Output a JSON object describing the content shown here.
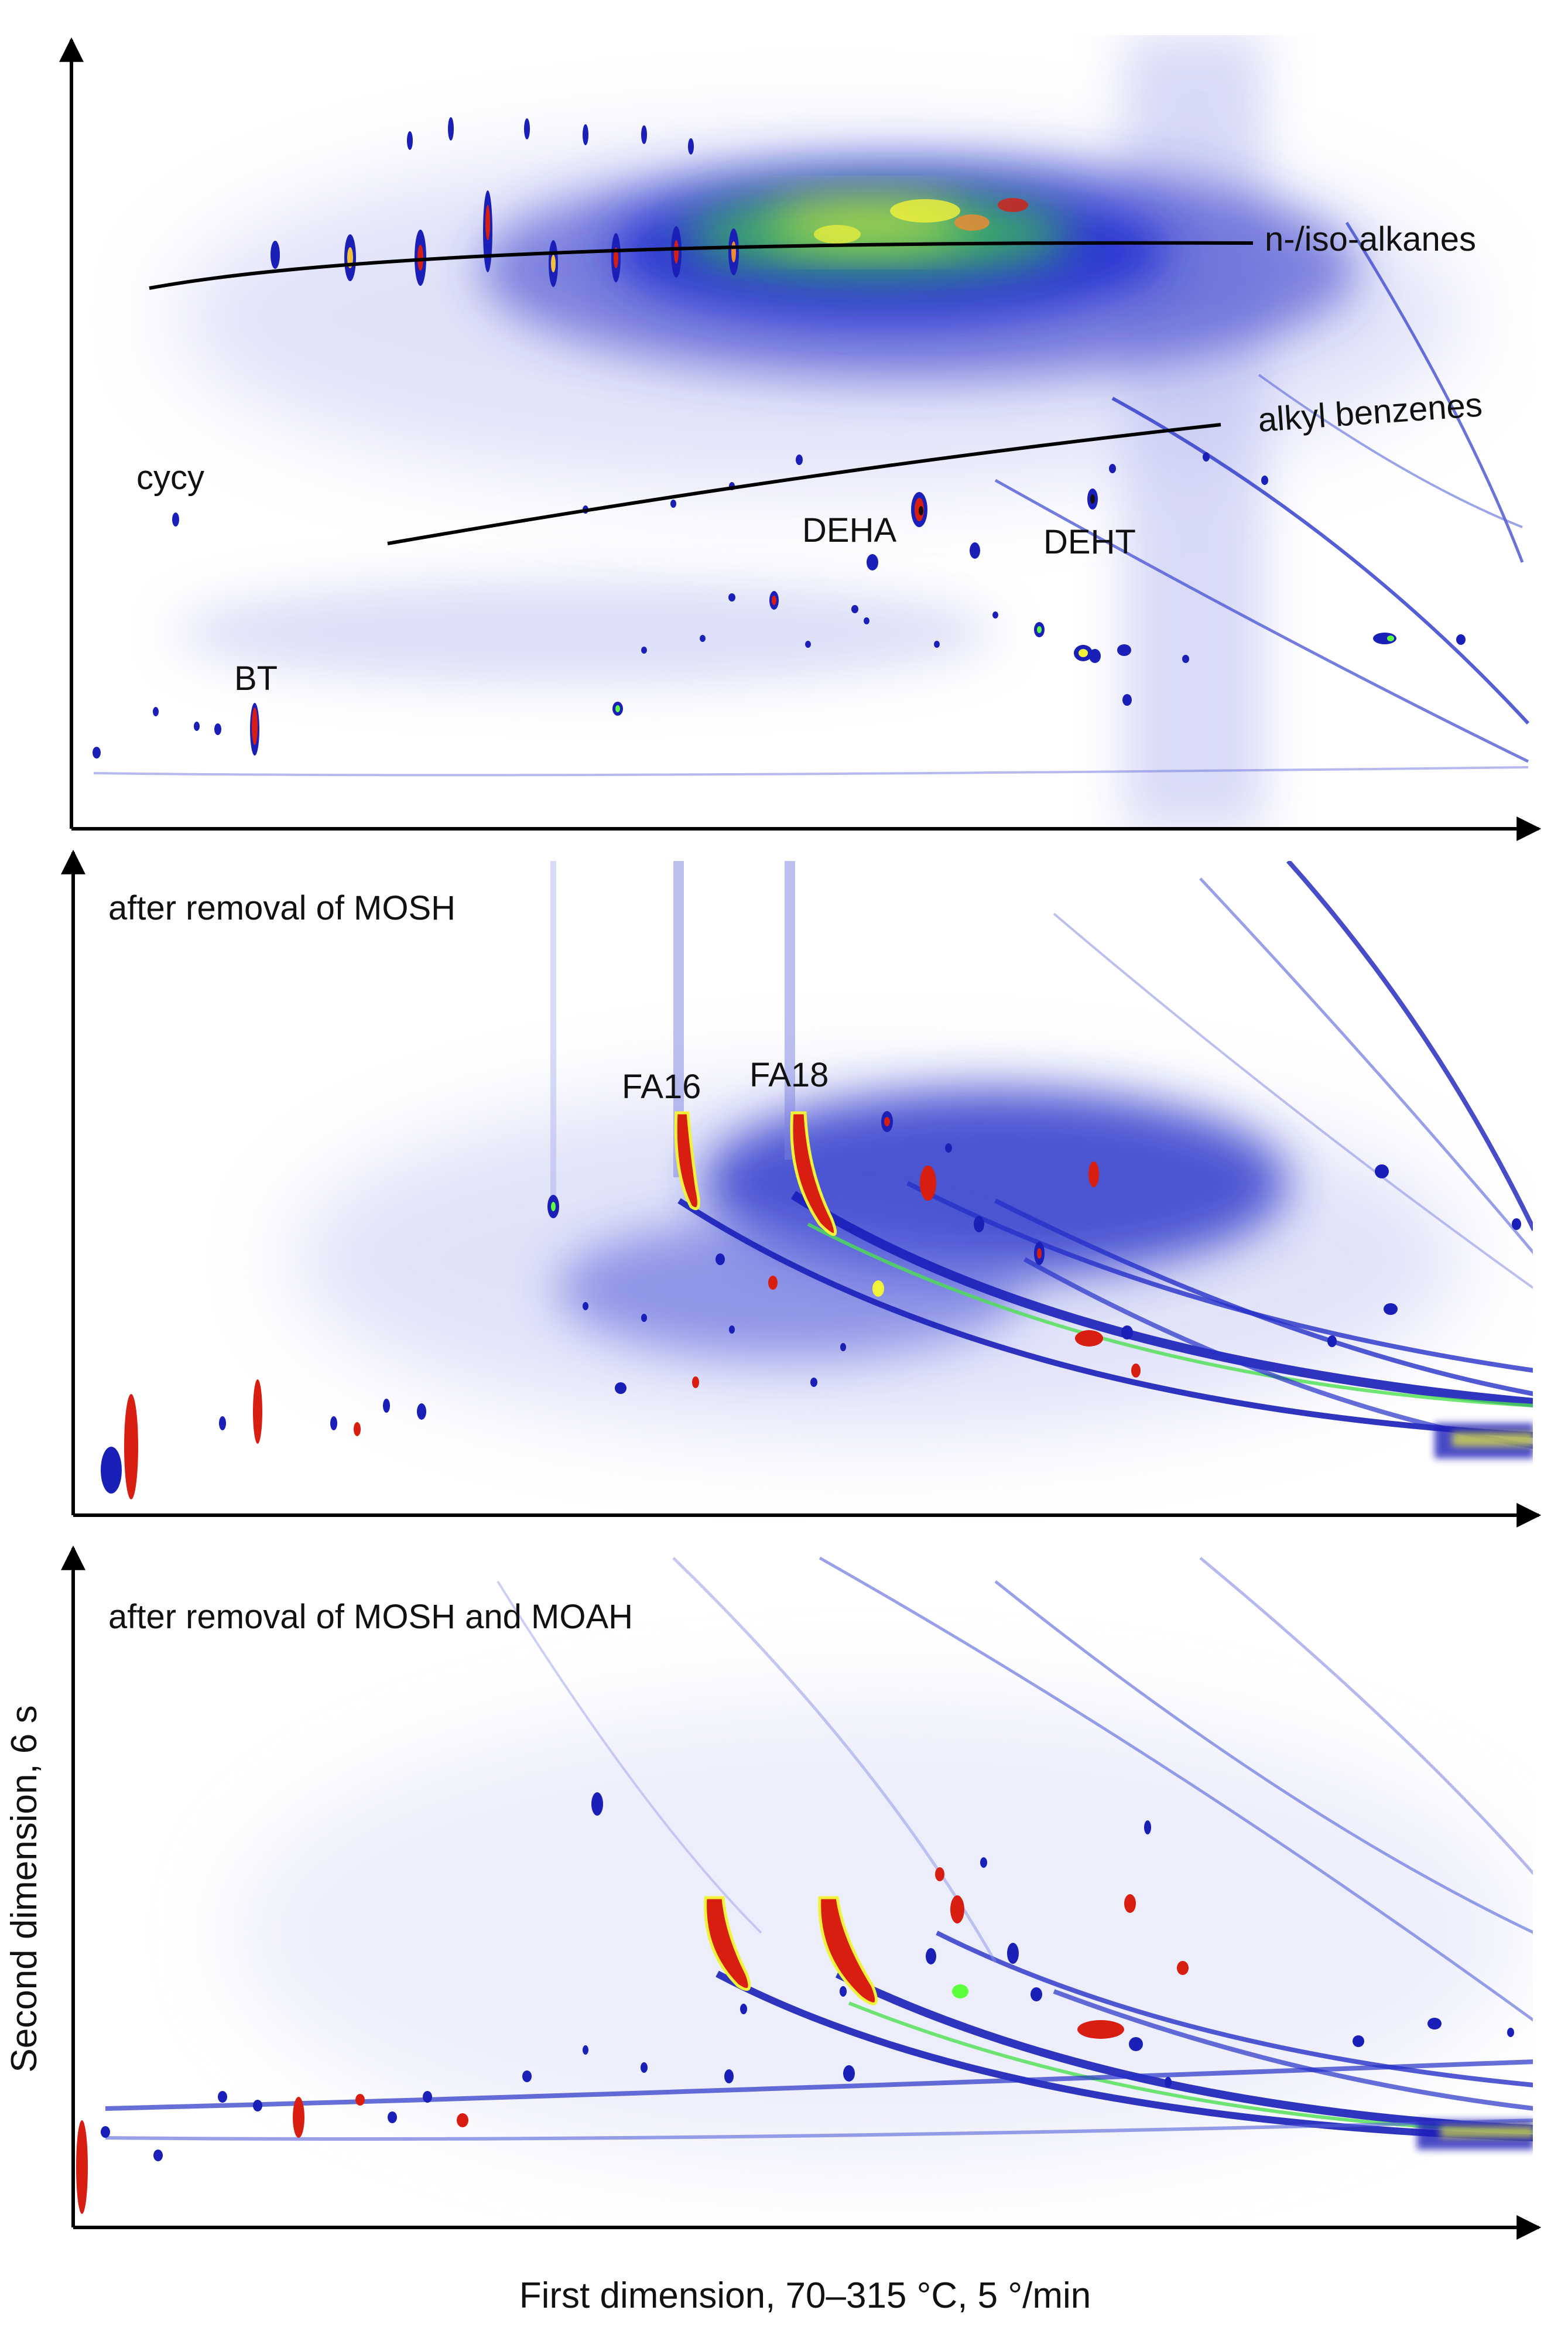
{
  "figure": {
    "axis_titles": {
      "x": "First dimension, 70–315 °C, 5 °/min",
      "y": "Second dimension, 6 s"
    }
  },
  "chart_data": [
    {
      "type": "heatmap",
      "panel": "top",
      "title": "",
      "annotations": [
        {
          "key": "alkanes",
          "text": "n-/iso-alkanes"
        },
        {
          "key": "alkylbenzenes",
          "text": "alkyl benzenes"
        },
        {
          "key": "cycy",
          "text": "cycy"
        },
        {
          "key": "deha",
          "text": "DEHA"
        },
        {
          "key": "deht",
          "text": "DEHT"
        },
        {
          "key": "bt",
          "text": "BT"
        }
      ]
    },
    {
      "type": "heatmap",
      "panel": "middle",
      "title": "after removal of MOSH",
      "annotations": [
        {
          "key": "fa16",
          "text": "FA16"
        },
        {
          "key": "fa18",
          "text": "FA18"
        }
      ]
    },
    {
      "type": "heatmap",
      "panel": "bottom",
      "title": "after removal of MOSH and MOAH",
      "annotations": []
    }
  ],
  "colors": {
    "low": "#1a1fb8",
    "mid": "#2b58ff",
    "green": "#5cff3c",
    "yellow": "#f2f23a",
    "high": "#d81e10"
  }
}
